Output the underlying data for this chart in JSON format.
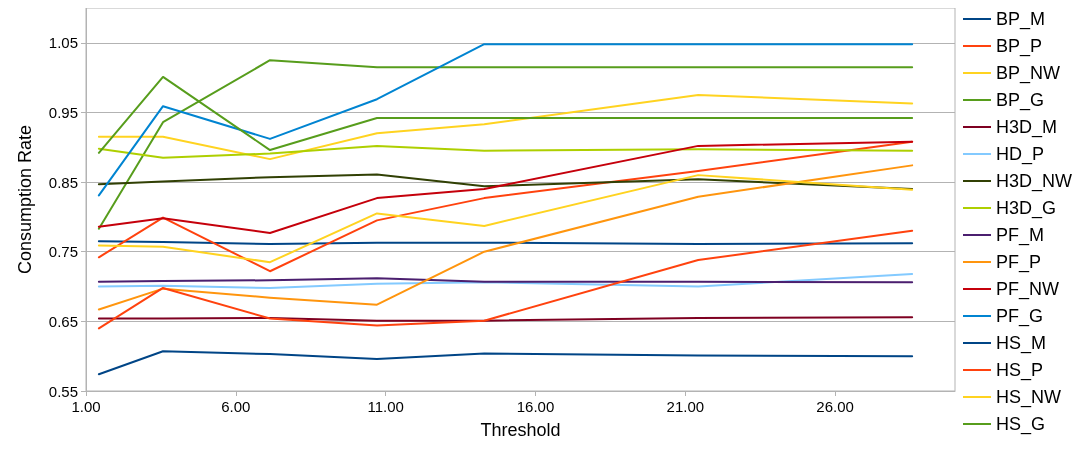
{
  "chart_data": {
    "type": "line",
    "xlabel": "Threshold",
    "ylabel": "Consumption Rate",
    "x": [
      1.43,
      3.57,
      7.14,
      10.71,
      14.29,
      21.43,
      28.57
    ],
    "xlim": [
      1,
      30
    ],
    "xticks": [
      {
        "value": 1,
        "label": "1.00"
      },
      {
        "value": 6,
        "label": "6.00"
      },
      {
        "value": 11,
        "label": "11.00"
      },
      {
        "value": 16,
        "label": "16.00"
      },
      {
        "value": 21,
        "label": "21.00"
      },
      {
        "value": 26,
        "label": "26.00"
      }
    ],
    "ylim": [
      0.55,
      1.1
    ],
    "yticks": [
      0.55,
      0.65,
      0.75,
      0.85,
      0.95,
      1.05
    ],
    "grid": "y",
    "legend": "right",
    "marker": "none",
    "line_style": "solid",
    "series": [
      {
        "name": "BP_M",
        "color": "#004586",
        "values": [
          0.765,
          0.764,
          0.761,
          0.763,
          0.763,
          0.761,
          0.762
        ]
      },
      {
        "name": "BP_P",
        "color": "#ff420e",
        "values": [
          0.742,
          0.799,
          0.722,
          0.795,
          0.827,
          0.866,
          0.908
        ]
      },
      {
        "name": "BP_NW",
        "color": "#ffd320",
        "values": [
          0.915,
          0.915,
          0.883,
          0.92,
          0.933,
          0.975,
          0.963
        ]
      },
      {
        "name": "BP_G",
        "color": "#579d1c",
        "values": [
          0.783,
          0.936,
          1.025,
          1.015,
          1.015,
          1.015,
          1.015
        ]
      },
      {
        "name": "H3D_M",
        "color": "#7e0021",
        "values": [
          0.654,
          0.654,
          0.655,
          0.651,
          0.651,
          0.655,
          0.656
        ]
      },
      {
        "name": "HD_P",
        "color": "#83caff",
        "values": [
          0.7,
          0.701,
          0.698,
          0.704,
          0.706,
          0.7,
          0.718
        ]
      },
      {
        "name": "H3D_NW",
        "color": "#314004",
        "values": [
          0.847,
          0.851,
          0.857,
          0.861,
          0.844,
          0.854,
          0.84
        ]
      },
      {
        "name": "H3D_G",
        "color": "#aecf00",
        "values": [
          0.898,
          0.885,
          0.891,
          0.902,
          0.895,
          0.897,
          0.895
        ]
      },
      {
        "name": "PF_M",
        "color": "#4b1f6f",
        "values": [
          0.707,
          0.708,
          0.709,
          0.712,
          0.707,
          0.707,
          0.706
        ]
      },
      {
        "name": "PF_P",
        "color": "#ff950e",
        "values": [
          0.667,
          0.697,
          0.684,
          0.674,
          0.75,
          0.829,
          0.874
        ]
      },
      {
        "name": "PF_NW",
        "color": "#c5000b",
        "values": [
          0.786,
          0.798,
          0.777,
          0.827,
          0.84,
          0.902,
          0.908
        ]
      },
      {
        "name": "PF_G",
        "color": "#0084d1",
        "values": [
          0.831,
          0.959,
          0.912,
          0.969,
          1.048,
          1.048,
          1.048
        ]
      },
      {
        "name": "HS_M",
        "color": "#004586",
        "values": [
          0.574,
          0.607,
          0.603,
          0.596,
          0.604,
          0.601,
          0.6
        ]
      },
      {
        "name": "HS_P",
        "color": "#ff420e",
        "values": [
          0.64,
          0.698,
          0.654,
          0.644,
          0.651,
          0.738,
          0.78
        ]
      },
      {
        "name": "HS_NW",
        "color": "#ffd320",
        "values": [
          0.759,
          0.757,
          0.735,
          0.805,
          0.787,
          0.86,
          0.839
        ]
      },
      {
        "name": "HS_G",
        "color": "#579d1c",
        "values": [
          0.892,
          1.001,
          0.896,
          0.942,
          0.942,
          0.942,
          0.942
        ]
      }
    ]
  }
}
